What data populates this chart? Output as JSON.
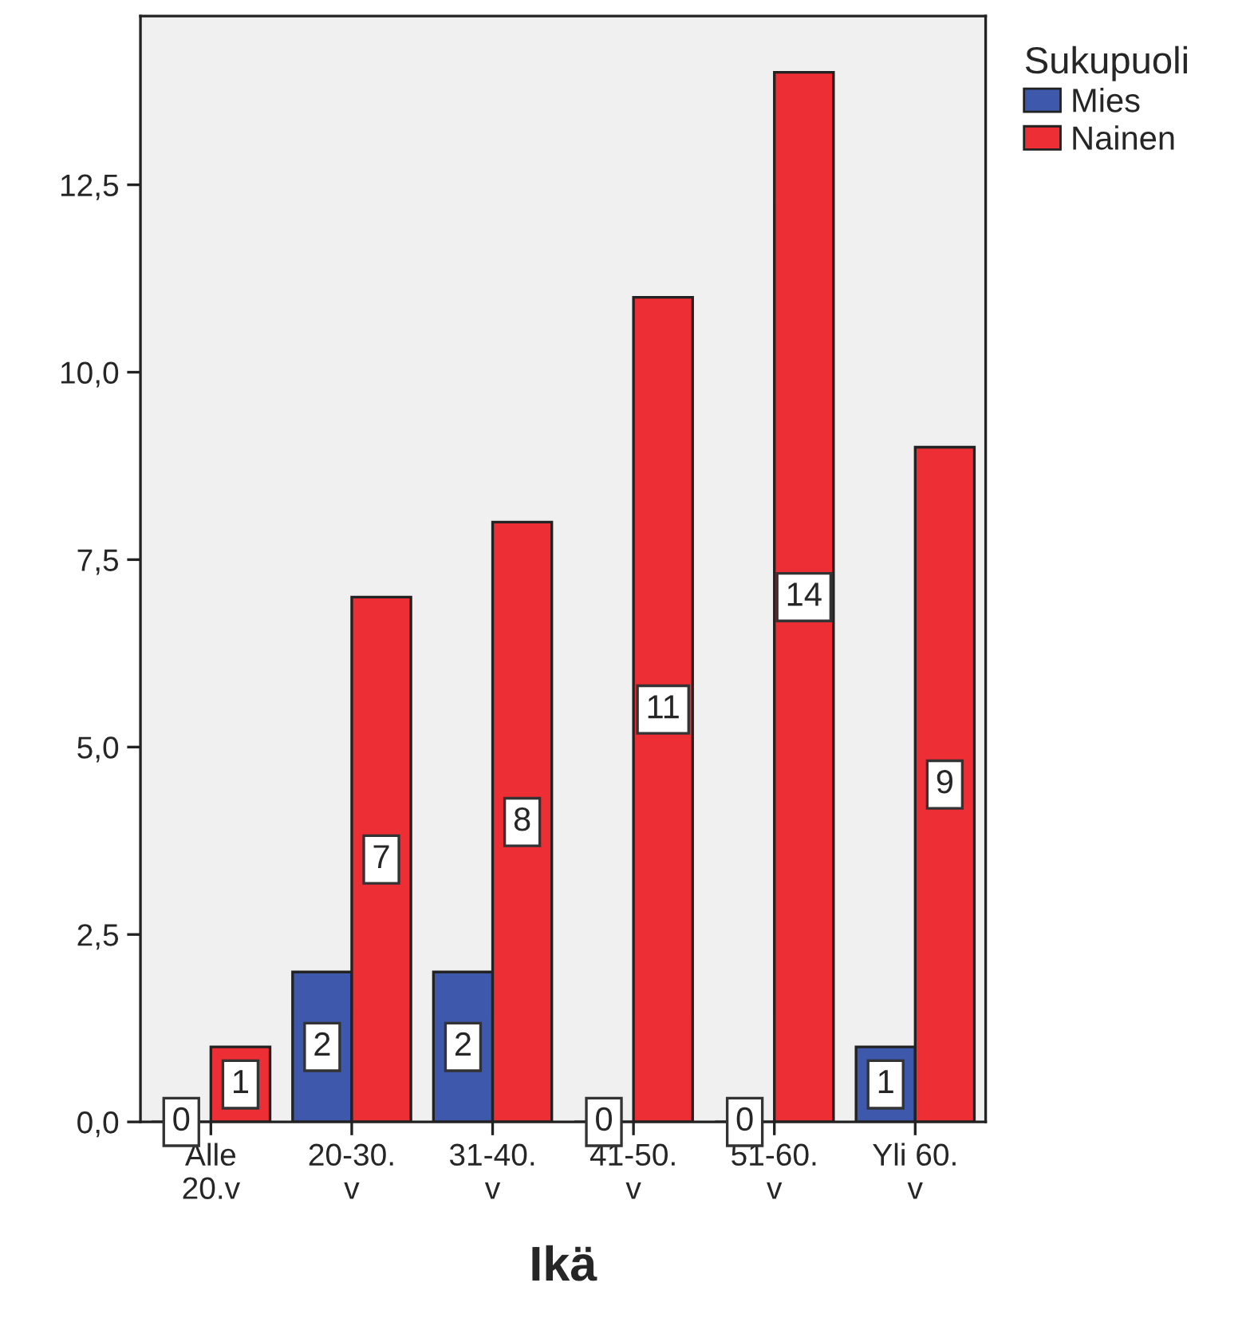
{
  "chart_data": {
    "type": "bar",
    "xlabel": "Ikä",
    "legend_title": "Sukupuoli",
    "categories": [
      "Alle\n20.v",
      "20-30.\nv",
      "31-40.\nv",
      "41-50.\nv",
      "51-60.\nv",
      "Yli 60.\nv"
    ],
    "series": [
      {
        "name": "Mies",
        "color": "#3e58ac",
        "values": [
          0,
          2,
          2,
          0,
          0,
          1
        ]
      },
      {
        "name": "Nainen",
        "color": "#ee2e35",
        "values": [
          1,
          7,
          8,
          11,
          14,
          9
        ]
      }
    ],
    "ylim": [
      0,
      14.75
    ],
    "yticks": [
      {
        "value": 0,
        "label": "0,0"
      },
      {
        "value": 2.5,
        "label": "2,5"
      },
      {
        "value": 5,
        "label": "5,0"
      },
      {
        "value": 7.5,
        "label": "7,5"
      },
      {
        "value": 10,
        "label": "10,0"
      },
      {
        "value": 12.5,
        "label": "12,5"
      }
    ],
    "data_labels": true,
    "legend": "top right",
    "grid": false
  }
}
